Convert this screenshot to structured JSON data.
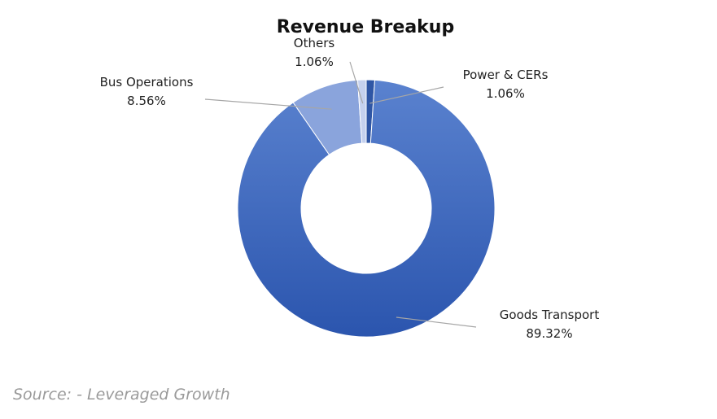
{
  "chart_data": {
    "type": "pie",
    "variant": "donut",
    "title": "Revenue Breakup",
    "slices": [
      {
        "name": "Power & CERs",
        "value": 1.06,
        "label": "1.06%",
        "color": "#2f56a5"
      },
      {
        "name": "Goods Transport",
        "value": 89.32,
        "label": "89.32%",
        "color": "#3b66bf"
      },
      {
        "name": "Bus Operations",
        "value": 8.56,
        "label": "8.56%",
        "color": "#8aa4dc"
      },
      {
        "name": "Others",
        "value": 1.06,
        "label": "1.06%",
        "color": "#c5d1ee"
      }
    ],
    "legend": "none"
  },
  "source": "Source:  - Leveraged Growth"
}
